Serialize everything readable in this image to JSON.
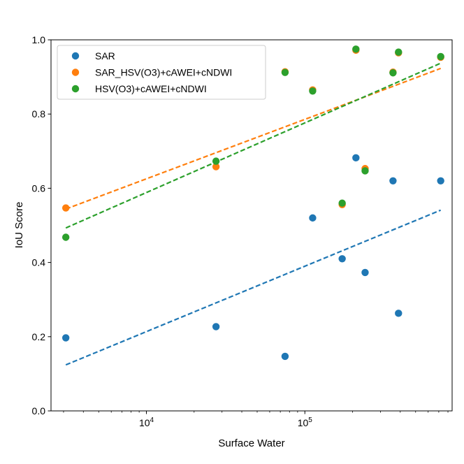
{
  "chart_data": {
    "type": "scatter",
    "title": "",
    "xlabel": "Surface Water",
    "ylabel": "IoU Score",
    "xscale": "log",
    "xlim": [
      2500,
      850000
    ],
    "ylim": [
      0.0,
      1.0
    ],
    "x_tick_labels": [
      {
        "value": 10000,
        "base": "10",
        "exp": "4"
      },
      {
        "value": 100000,
        "base": "10",
        "exp": "5"
      }
    ],
    "y_ticks": [
      0.0,
      0.2,
      0.4,
      0.6,
      0.8,
      1.0
    ],
    "y_tick_labels": [
      "0.0",
      "0.2",
      "0.4",
      "0.6",
      "0.8",
      "1.0"
    ],
    "grid": false,
    "legend_position": "top-left",
    "series": [
      {
        "name": "SAR",
        "color": "#1f77b4",
        "x": [
          3100,
          27500,
          75000,
          112000,
          172000,
          210000,
          240000,
          360000,
          390000,
          720000
        ],
        "y": [
          0.197,
          0.227,
          0.147,
          0.52,
          0.41,
          0.682,
          0.373,
          0.62,
          0.263,
          0.62
        ],
        "trend": [
          [
            3100,
            0.124
          ],
          [
            720000,
            0.541
          ]
        ]
      },
      {
        "name": "SAR_HSV(O3)+cAWEI+cNDWI",
        "color": "#ff7f0e",
        "x": [
          3100,
          27500,
          75000,
          112000,
          172000,
          210000,
          240000,
          360000,
          390000,
          720000
        ],
        "y": [
          0.547,
          0.658,
          0.914,
          0.865,
          0.556,
          0.972,
          0.653,
          0.913,
          0.965,
          0.953
        ],
        "trend": [
          [
            3100,
            0.544
          ],
          [
            720000,
            0.923
          ]
        ]
      },
      {
        "name": "HSV(O3)+cAWEI+cNDWI",
        "color": "#2ca02c",
        "x": [
          3100,
          27500,
          75000,
          112000,
          172000,
          210000,
          240000,
          360000,
          390000,
          720000
        ],
        "y": [
          0.468,
          0.673,
          0.912,
          0.862,
          0.56,
          0.975,
          0.647,
          0.911,
          0.967,
          0.955
        ],
        "trend": [
          [
            3100,
            0.493
          ],
          [
            720000,
            0.937
          ]
        ]
      }
    ]
  }
}
